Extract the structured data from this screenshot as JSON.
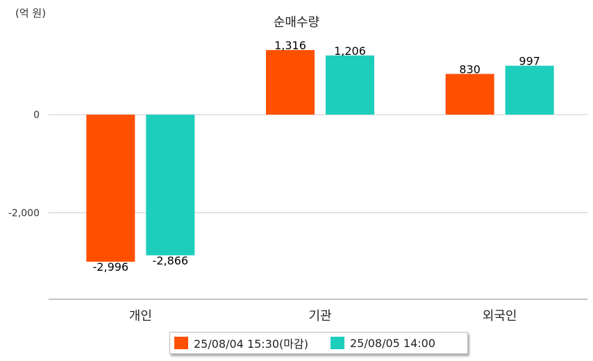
{
  "unit_label": "(억 원)",
  "chart_data": {
    "type": "bar",
    "title": "순매수량",
    "categories": [
      "개인",
      "기관",
      "외국인"
    ],
    "series": [
      {
        "name": "25/08/04 15:30(마감)",
        "color": "#ff5000",
        "values": [
          -2996,
          1316,
          830
        ]
      },
      {
        "name": "25/08/05 14:00",
        "color": "#1ecebc",
        "values": [
          -2866,
          1206,
          997
        ]
      }
    ],
    "value_labels": [
      [
        "-2,996",
        "1,316",
        "830"
      ],
      [
        "-2,866",
        "1,206",
        "997"
      ]
    ],
    "y_ticks": [
      0,
      -2000
    ],
    "y_tick_labels": [
      "0",
      "-2,000"
    ],
    "ylim": [
      -3760,
      1770
    ],
    "grid": true,
    "legend_position": "bottom"
  }
}
